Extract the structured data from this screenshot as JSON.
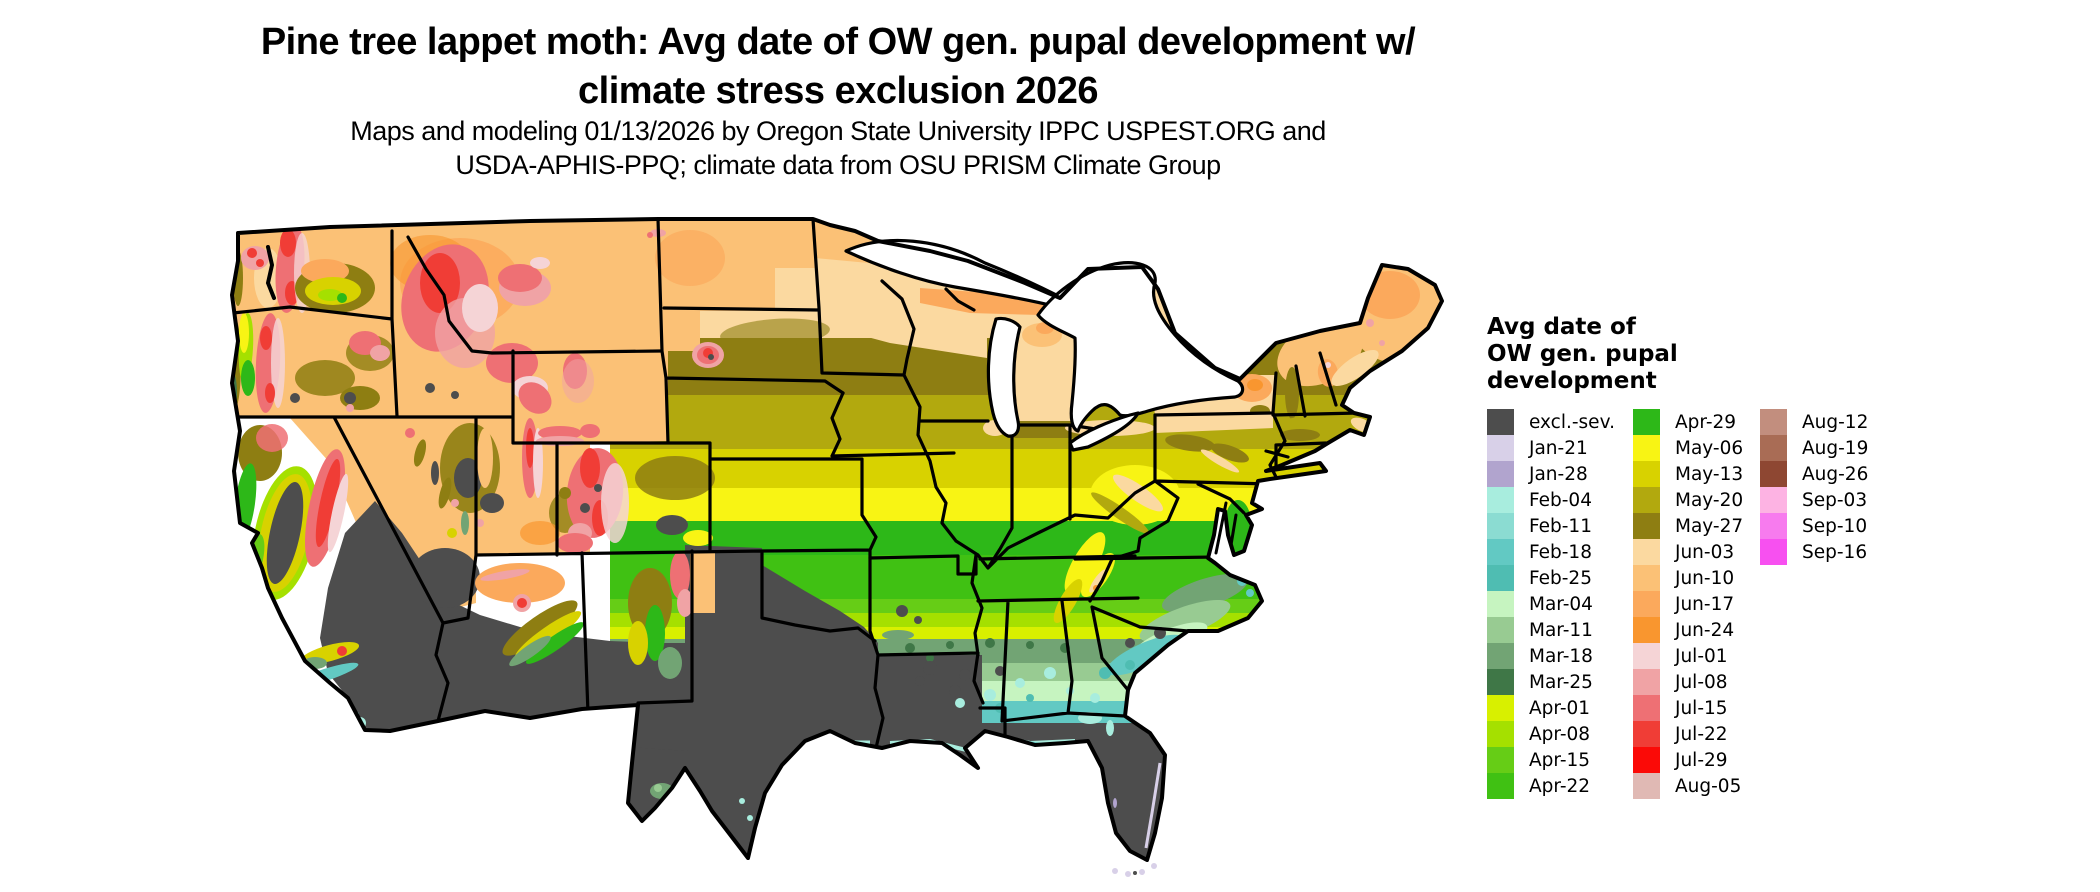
{
  "title": {
    "line1": "Pine tree lappet moth: Avg date of OW gen. pupal development w/",
    "line2": "climate stress exclusion 2026"
  },
  "subtitle": {
    "line1": "Maps and modeling 01/13/2026 by Oregon State University IPPC USPEST.ORG and",
    "line2": "USDA-APHIS-PPQ; climate data from OSU PRISM Climate Group"
  },
  "legend": {
    "title_lines": [
      "Avg date of",
      "OW gen. pupal",
      "development"
    ],
    "columns": [
      [
        {
          "label": "excl.-sev.",
          "color": "#4D4D4D"
        },
        {
          "label": "Jan-21",
          "color": "#D8D0E8"
        },
        {
          "label": "Jan-28",
          "color": "#B1A4CE"
        },
        {
          "label": "Feb-04",
          "color": "#A8EDDE"
        },
        {
          "label": "Feb-11",
          "color": "#8BDCD2"
        },
        {
          "label": "Feb-18",
          "color": "#62C9C3"
        },
        {
          "label": "Feb-25",
          "color": "#4FBDB2"
        },
        {
          "label": "Mar-04",
          "color": "#C6F4C0"
        },
        {
          "label": "Mar-11",
          "color": "#98CB92"
        },
        {
          "label": "Mar-18",
          "color": "#72A474"
        },
        {
          "label": "Mar-25",
          "color": "#3F7747"
        },
        {
          "label": "Apr-01",
          "color": "#D8F000"
        },
        {
          "label": "Apr-08",
          "color": "#A5E000"
        },
        {
          "label": "Apr-15",
          "color": "#66CD16"
        },
        {
          "label": "Apr-22",
          "color": "#40C113"
        }
      ],
      [
        {
          "label": "Apr-29",
          "color": "#2DB818"
        },
        {
          "label": "May-06",
          "color": "#F8F414"
        },
        {
          "label": "May-13",
          "color": "#D8D200"
        },
        {
          "label": "May-20",
          "color": "#B2A90E"
        },
        {
          "label": "May-27",
          "color": "#8E7E12"
        },
        {
          "label": "Jun-03",
          "color": "#FBD9A0"
        },
        {
          "label": "Jun-10",
          "color": "#FBC176"
        },
        {
          "label": "Jun-17",
          "color": "#FBA95C"
        },
        {
          "label": "Jun-24",
          "color": "#F9962F"
        },
        {
          "label": "Jul-01",
          "color": "#F5D4D6"
        },
        {
          "label": "Jul-08",
          "color": "#F0A3A5"
        },
        {
          "label": "Jul-15",
          "color": "#EE7074"
        },
        {
          "label": "Jul-22",
          "color": "#F03D36"
        },
        {
          "label": "Jul-29",
          "color": "#FB0A07"
        },
        {
          "label": "Aug-05",
          "color": "#E0B9B4"
        }
      ],
      [
        {
          "label": "Aug-12",
          "color": "#C28E7E"
        },
        {
          "label": "Aug-19",
          "color": "#A96C55"
        },
        {
          "label": "Aug-26",
          "color": "#8E4732"
        },
        {
          "label": "Sep-03",
          "color": "#FDB3E3"
        },
        {
          "label": "Sep-10",
          "color": "#F77BEE"
        },
        {
          "label": "Sep-16",
          "color": "#F750F0"
        }
      ]
    ]
  },
  "map": {
    "colors": {
      "background": "#FFFFFF",
      "state_borders": "#000000",
      "water": "#FFFFFF"
    }
  }
}
